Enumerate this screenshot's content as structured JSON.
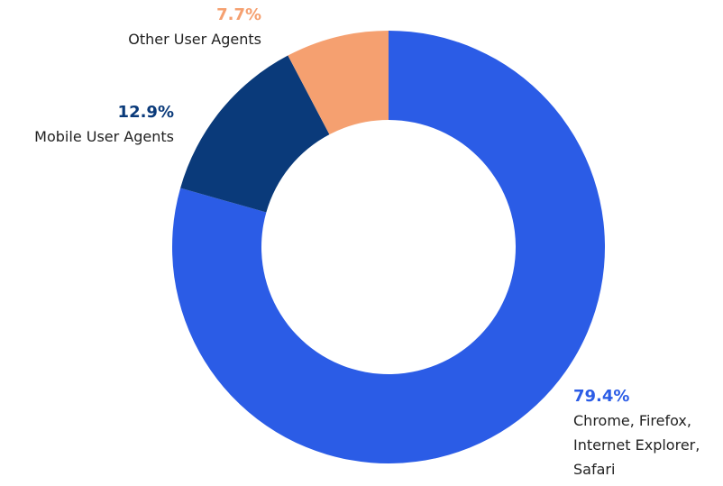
{
  "chart_data": {
    "type": "donut",
    "categories": [
      "Chrome, Firefox, Internet Explorer, Safari",
      "Mobile User Agents",
      "Other User Agents"
    ],
    "values": [
      79.4,
      12.9,
      7.7
    ],
    "value_labels": [
      "79.4%",
      "12.9%",
      "7.7%"
    ],
    "colors": [
      "#2b5ce6",
      "#0a3a7a",
      "#f5a070"
    ]
  }
}
